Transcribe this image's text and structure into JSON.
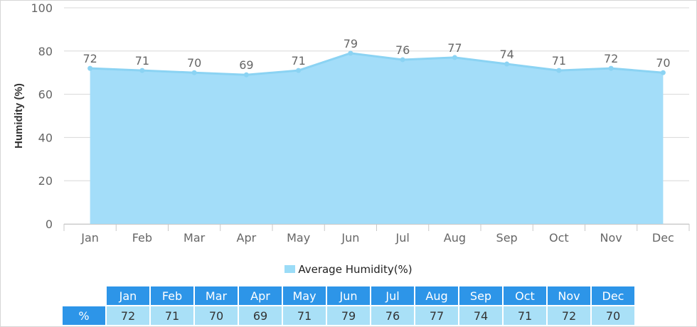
{
  "chart_data": {
    "type": "area",
    "categories": [
      "Jan",
      "Feb",
      "Mar",
      "Apr",
      "May",
      "Jun",
      "Jul",
      "Aug",
      "Sep",
      "Oct",
      "Nov",
      "Dec"
    ],
    "series": [
      {
        "name": "Average Humidity(%)",
        "values": [
          72,
          71,
          70,
          69,
          71,
          79,
          76,
          77,
          74,
          71,
          72,
          70
        ]
      }
    ],
    "ylabel": "Humidity (%)",
    "ylim": [
      0,
      100
    ],
    "yticks": [
      0,
      20,
      40,
      60,
      80,
      100
    ],
    "grid": true,
    "legend_position": "bottom",
    "colors": {
      "fill": "#a3ddf9",
      "line": "#8bd3f3",
      "grid": "#d8d8d8"
    }
  },
  "legend": {
    "label": "Average Humidity(%)"
  },
  "table": {
    "row_label": "%",
    "months": [
      "Jan",
      "Feb",
      "Mar",
      "Apr",
      "May",
      "Jun",
      "Jul",
      "Aug",
      "Sep",
      "Oct",
      "Nov",
      "Dec"
    ],
    "values": [
      "72",
      "71",
      "70",
      "69",
      "71",
      "79",
      "76",
      "77",
      "74",
      "71",
      "72",
      "70"
    ]
  }
}
